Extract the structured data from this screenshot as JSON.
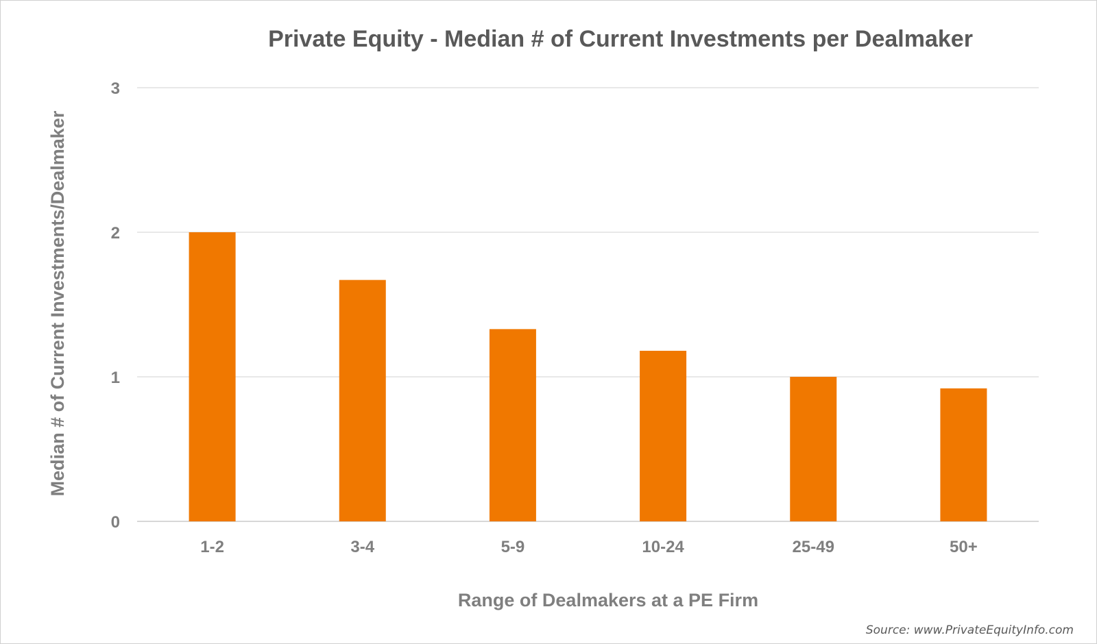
{
  "chart_data": {
    "type": "bar",
    "title": "Private Equity - Median # of Current Investments per Dealmaker",
    "xlabel": "Range of Dealmakers at a PE Firm",
    "ylabel": "Median # of Current Investments/Dealmaker",
    "categories": [
      "1-2",
      "3-4",
      "5-9",
      "10-24",
      "25-49",
      "50+"
    ],
    "values": [
      2.0,
      1.67,
      1.33,
      1.18,
      1.0,
      0.92
    ],
    "ylim": [
      0,
      3
    ],
    "yticks": [
      "0",
      "1",
      "2",
      "3"
    ],
    "grid": true,
    "legend": "none",
    "bar_color": "#f07800",
    "grid_color": "#d9d9d9",
    "source": "Source: www.PrivateEquityInfo.com"
  }
}
